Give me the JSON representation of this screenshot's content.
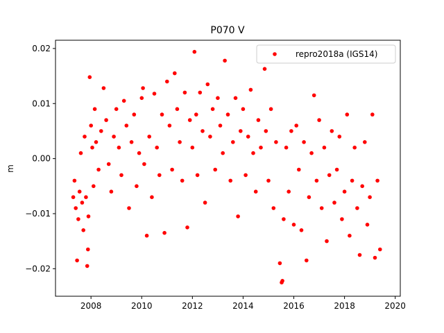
{
  "chart_data": {
    "type": "scatter",
    "title": "P070 V",
    "xlabel": "",
    "ylabel": "m",
    "xlim": [
      2006.6,
      2020.2
    ],
    "ylim": [
      -0.025,
      0.0215
    ],
    "xticks": [
      2008,
      2010,
      2012,
      2014,
      2016,
      2018,
      2020
    ],
    "xtick_labels": [
      "2008",
      "2010",
      "2012",
      "2014",
      "2016",
      "2018",
      "2020"
    ],
    "yticks": [
      -0.02,
      -0.01,
      0.0,
      0.01,
      0.02
    ],
    "ytick_labels": [
      "−0.02",
      "−0.01",
      "0.00",
      "0.01",
      "0.02"
    ],
    "legend_position": "top-right",
    "grid": false,
    "series": [
      {
        "name": "repro2018a (IGS14)",
        "color": "#ff0000",
        "marker": "circle",
        "points": [
          [
            2007.3,
            -0.007
          ],
          [
            2007.35,
            -0.004
          ],
          [
            2007.4,
            -0.009
          ],
          [
            2007.45,
            -0.0185
          ],
          [
            2007.5,
            -0.011
          ],
          [
            2007.55,
            -0.006
          ],
          [
            2007.6,
            0.001
          ],
          [
            2007.65,
            -0.008
          ],
          [
            2007.7,
            -0.013
          ],
          [
            2007.75,
            0.004
          ],
          [
            2007.8,
            -0.007
          ],
          [
            2007.85,
            -0.0195
          ],
          [
            2007.88,
            -0.0165
          ],
          [
            2007.9,
            -0.0105
          ],
          [
            2007.95,
            0.0148
          ],
          [
            2008.0,
            0.006
          ],
          [
            2008.05,
            0.002
          ],
          [
            2008.1,
            -0.005
          ],
          [
            2008.15,
            0.009
          ],
          [
            2008.2,
            0.003
          ],
          [
            2008.3,
            -0.002
          ],
          [
            2008.4,
            0.005
          ],
          [
            2008.5,
            0.0128
          ],
          [
            2008.6,
            0.007
          ],
          [
            2008.7,
            -0.001
          ],
          [
            2008.8,
            -0.006
          ],
          [
            2008.9,
            0.004
          ],
          [
            2009.0,
            0.009
          ],
          [
            2009.1,
            0.002
          ],
          [
            2009.2,
            -0.003
          ],
          [
            2009.3,
            0.0105
          ],
          [
            2009.4,
            0.006
          ],
          [
            2009.5,
            -0.009
          ],
          [
            2009.6,
            0.003
          ],
          [
            2009.7,
            0.008
          ],
          [
            2009.8,
            -0.005
          ],
          [
            2009.9,
            0.001
          ],
          [
            2010.0,
            0.011
          ],
          [
            2010.05,
            0.0128
          ],
          [
            2010.1,
            -0.001
          ],
          [
            2010.2,
            -0.014
          ],
          [
            2010.3,
            0.004
          ],
          [
            2010.4,
            -0.007
          ],
          [
            2010.5,
            0.0118
          ],
          [
            2010.6,
            0.002
          ],
          [
            2010.7,
            -0.003
          ],
          [
            2010.8,
            0.008
          ],
          [
            2010.9,
            -0.0135
          ],
          [
            2011.0,
            0.014
          ],
          [
            2011.1,
            0.006
          ],
          [
            2011.2,
            -0.002
          ],
          [
            2011.3,
            0.0155
          ],
          [
            2011.4,
            0.009
          ],
          [
            2011.5,
            0.003
          ],
          [
            2011.6,
            -0.004
          ],
          [
            2011.7,
            0.012
          ],
          [
            2011.8,
            -0.0125
          ],
          [
            2011.9,
            0.007
          ],
          [
            2012.0,
            0.002
          ],
          [
            2012.08,
            0.0194
          ],
          [
            2012.15,
            0.008
          ],
          [
            2012.2,
            -0.003
          ],
          [
            2012.3,
            0.012
          ],
          [
            2012.4,
            0.005
          ],
          [
            2012.5,
            -0.008
          ],
          [
            2012.6,
            0.0135
          ],
          [
            2012.7,
            0.004
          ],
          [
            2012.8,
            0.009
          ],
          [
            2012.9,
            -0.002
          ],
          [
            2013.0,
            0.011
          ],
          [
            2013.1,
            0.006
          ],
          [
            2013.2,
            0.001
          ],
          [
            2013.28,
            0.0178
          ],
          [
            2013.4,
            0.008
          ],
          [
            2013.5,
            -0.004
          ],
          [
            2013.6,
            0.003
          ],
          [
            2013.7,
            0.011
          ],
          [
            2013.8,
            -0.0105
          ],
          [
            2013.9,
            0.005
          ],
          [
            2014.0,
            0.009
          ],
          [
            2014.1,
            -0.003
          ],
          [
            2014.2,
            0.004
          ],
          [
            2014.3,
            0.0125
          ],
          [
            2014.4,
            0.001
          ],
          [
            2014.5,
            -0.006
          ],
          [
            2014.6,
            0.007
          ],
          [
            2014.7,
            0.002
          ],
          [
            2014.85,
            0.0163
          ],
          [
            2014.9,
            0.005
          ],
          [
            2015.0,
            -0.004
          ],
          [
            2015.1,
            0.009
          ],
          [
            2015.2,
            -0.009
          ],
          [
            2015.3,
            0.003
          ],
          [
            2015.45,
            -0.019
          ],
          [
            2015.52,
            -0.0225
          ],
          [
            2015.55,
            -0.0222
          ],
          [
            2015.6,
            -0.011
          ],
          [
            2015.7,
            0.002
          ],
          [
            2015.8,
            -0.006
          ],
          [
            2015.9,
            0.005
          ],
          [
            2016.0,
            -0.012
          ],
          [
            2016.1,
            0.006
          ],
          [
            2016.2,
            -0.002
          ],
          [
            2016.3,
            -0.013
          ],
          [
            2016.4,
            0.003
          ],
          [
            2016.5,
            -0.0185
          ],
          [
            2016.6,
            -0.007
          ],
          [
            2016.7,
            0.001
          ],
          [
            2016.8,
            0.0115
          ],
          [
            2016.9,
            -0.004
          ],
          [
            2017.0,
            0.007
          ],
          [
            2017.1,
            -0.009
          ],
          [
            2017.2,
            0.002
          ],
          [
            2017.3,
            -0.015
          ],
          [
            2017.4,
            -0.003
          ],
          [
            2017.5,
            0.005
          ],
          [
            2017.6,
            -0.008
          ],
          [
            2017.7,
            -0.002
          ],
          [
            2017.8,
            0.004
          ],
          [
            2017.9,
            -0.011
          ],
          [
            2018.0,
            -0.006
          ],
          [
            2018.1,
            0.008
          ],
          [
            2018.2,
            -0.014
          ],
          [
            2018.3,
            -0.004
          ],
          [
            2018.4,
            0.002
          ],
          [
            2018.5,
            -0.009
          ],
          [
            2018.6,
            -0.0175
          ],
          [
            2018.7,
            -0.005
          ],
          [
            2018.8,
            0.003
          ],
          [
            2018.9,
            -0.012
          ],
          [
            2019.0,
            -0.007
          ],
          [
            2019.1,
            0.008
          ],
          [
            2019.2,
            -0.018
          ],
          [
            2019.3,
            -0.004
          ],
          [
            2019.4,
            -0.0165
          ]
        ]
      }
    ]
  }
}
